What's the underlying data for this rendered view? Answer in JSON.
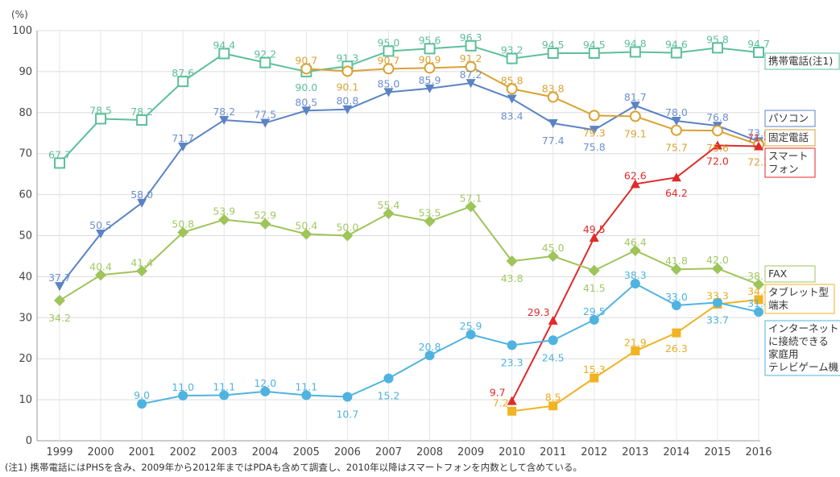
{
  "chart_data": {
    "type": "line",
    "unit_label": "(%)",
    "x": [
      "1999",
      "2000",
      "2001",
      "2002",
      "2003",
      "2004",
      "2005",
      "2006",
      "2007",
      "2008",
      "2009",
      "2010",
      "2011",
      "2012",
      "2013",
      "2014",
      "2015",
      "2016"
    ],
    "ylim": [
      0,
      100
    ],
    "yticks": [
      0,
      10,
      20,
      30,
      40,
      50,
      60,
      70,
      80,
      90,
      100
    ],
    "grid": true,
    "series": [
      {
        "name": "携帯電話(注1)",
        "color": "#5dbf9a",
        "marker": "square-open",
        "values": [
          67.7,
          78.5,
          78.2,
          87.6,
          94.4,
          92.2,
          90.0,
          91.3,
          95.0,
          95.6,
          96.3,
          93.2,
          94.5,
          94.5,
          94.8,
          94.6,
          95.8,
          94.7
        ]
      },
      {
        "name": "パソコン",
        "color": "#5b83c4",
        "marker": "triangle-down",
        "values": [
          37.7,
          50.5,
          58.0,
          71.7,
          78.2,
          77.5,
          80.5,
          80.8,
          85.0,
          85.9,
          87.2,
          83.4,
          77.4,
          75.8,
          81.7,
          78.0,
          76.8,
          73.0
        ]
      },
      {
        "name": "固定電話",
        "color": "#d9a233",
        "marker": "circle-open",
        "values": [
          null,
          null,
          null,
          null,
          null,
          null,
          90.7,
          90.1,
          90.7,
          90.9,
          91.2,
          85.8,
          83.8,
          79.3,
          79.1,
          75.7,
          75.6,
          72.2
        ]
      },
      {
        "name": "スマートフォン",
        "legend_lines": [
          "スマート",
          "フォン"
        ],
        "color": "#e02a2a",
        "marker": "triangle-up",
        "values": [
          null,
          null,
          null,
          null,
          null,
          null,
          null,
          null,
          null,
          null,
          null,
          9.7,
          29.3,
          49.5,
          62.6,
          64.2,
          72.0,
          71.8
        ]
      },
      {
        "name": "FAX",
        "color": "#9ec45a",
        "marker": "diamond",
        "values": [
          34.2,
          40.4,
          41.4,
          50.8,
          53.9,
          52.9,
          50.4,
          50.0,
          55.4,
          53.5,
          57.1,
          43.8,
          45.0,
          41.5,
          46.4,
          41.8,
          42.0,
          38.1
        ]
      },
      {
        "name": "タブレット型端末",
        "legend_lines": [
          "タブレット型",
          "端末"
        ],
        "color": "#f0b322",
        "marker": "square",
        "values": [
          null,
          null,
          null,
          null,
          null,
          null,
          null,
          null,
          null,
          null,
          null,
          7.2,
          8.5,
          15.3,
          21.9,
          26.3,
          33.3,
          34.4
        ]
      },
      {
        "name": "インターネットに接続できる家庭用テレビゲーム機",
        "legend_lines": [
          "インターネット",
          "に接続できる",
          "家庭用",
          "テレビゲーム機"
        ],
        "color": "#4fb3e0",
        "marker": "circle",
        "values": [
          null,
          null,
          9.0,
          11.0,
          11.1,
          12.0,
          11.1,
          10.7,
          15.2,
          20.8,
          25.9,
          23.3,
          24.5,
          29.5,
          38.3,
          33.0,
          33.7,
          31.4
        ]
      }
    ]
  },
  "footnote": "(注1) 携帯電話にはPHSを含み、2009年から2012年まではPDAも含めて調査し、2010年以降はスマートフォンを内数として含めている。"
}
